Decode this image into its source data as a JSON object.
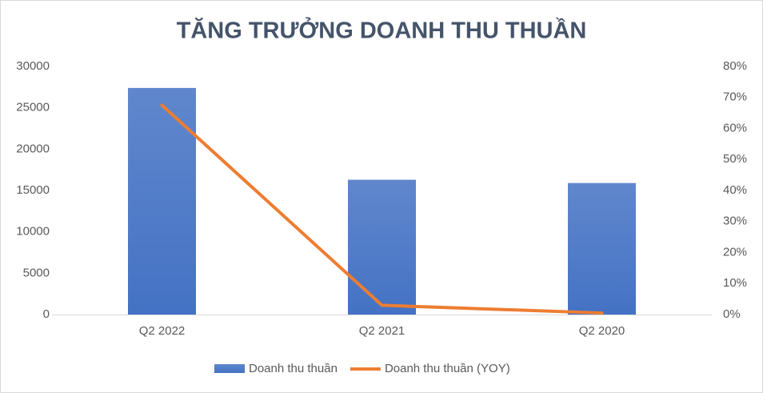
{
  "chart_data": {
    "type": "bar",
    "title": "TĂNG TRƯỞNG DOANH THU THUẦN",
    "categories": [
      "Q2 2022",
      "Q2 2021",
      "Q2 2020"
    ],
    "series": [
      {
        "name": "Doanh thu thuần",
        "type": "bar",
        "color": "#4472c4",
        "values": [
          27400,
          16300,
          15900
        ]
      },
      {
        "name": "Doanh thu thuần (YOY)",
        "type": "line",
        "axis": "y2",
        "color": "#ed7d31",
        "values": [
          67.5,
          3,
          0.5
        ]
      }
    ],
    "ylim": [
      0,
      30000
    ],
    "yticks": [
      0,
      5000,
      10000,
      15000,
      20000,
      25000,
      30000
    ],
    "y2lim": [
      0,
      80
    ],
    "y2ticks": [
      {
        "value": 0,
        "label": "0%"
      },
      {
        "value": 10,
        "label": "10%"
      },
      {
        "value": 20,
        "label": "20%"
      },
      {
        "value": 30,
        "label": "30%"
      },
      {
        "value": 40,
        "label": "40%"
      },
      {
        "value": 50,
        "label": "50%"
      },
      {
        "value": 60,
        "label": "60%"
      },
      {
        "value": 70,
        "label": "70%"
      },
      {
        "value": 80,
        "label": "80%"
      }
    ],
    "grid": false,
    "legend": "bottom"
  }
}
